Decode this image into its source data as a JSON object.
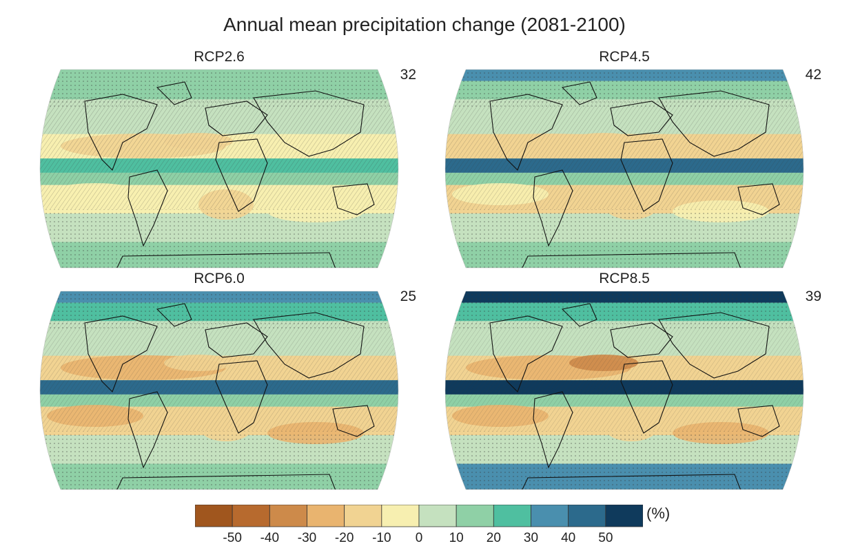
{
  "title": "Annual mean precipitation change (2081-2100)",
  "panels": [
    {
      "label": "RCP2.6",
      "count": "32",
      "intensity": 0.35
    },
    {
      "label": "RCP4.5",
      "count": "42",
      "intensity": 0.6
    },
    {
      "label": "RCP6.0",
      "count": "25",
      "intensity": 0.75
    },
    {
      "label": "RCP8.5",
      "count": "39",
      "intensity": 1.0
    }
  ],
  "legend": {
    "unit": "(%)",
    "ticks": [
      "-50",
      "-40",
      "-30",
      "-20",
      "-10",
      "0",
      "10",
      "20",
      "30",
      "40",
      "50"
    ],
    "colors": [
      "#a0561e",
      "#b76a2e",
      "#cd8a4a",
      "#e9b46f",
      "#f1d392",
      "#f7efb0",
      "#c5e1bf",
      "#8fd0a6",
      "#4fbfa0",
      "#4a8fae",
      "#2c6a8c",
      "#0f3a5c"
    ]
  }
}
